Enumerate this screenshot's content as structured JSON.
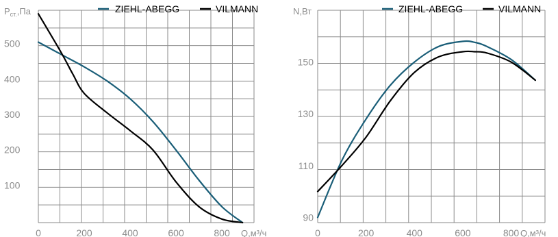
{
  "chart_data": [
    {
      "type": "line",
      "ylabel_main": "P",
      "ylabel_sub": "ст.",
      "ylabel_rest": ",Па",
      "xlabel": "Q,м³/ч",
      "xlim": [
        0,
        940
      ],
      "ylim": [
        0,
        600
      ],
      "x_ticks": [
        0,
        200,
        400,
        600,
        800
      ],
      "y_ticks": [
        100,
        200,
        300,
        400,
        500
      ],
      "grid": true,
      "legend_position": "top-right",
      "series": [
        {
          "name": "ZIEHL-ABEGG",
          "color": "#1a5e78",
          "x": [
            0,
            100,
            200,
            300,
            400,
            500,
            600,
            700,
            800,
            890
          ],
          "y": [
            510,
            475,
            440,
            400,
            350,
            285,
            205,
            120,
            45,
            0
          ]
        },
        {
          "name": "VILMANN",
          "color": "#000000",
          "x": [
            0,
            100,
            150,
            200,
            300,
            400,
            500,
            600,
            700,
            800,
            890
          ],
          "y": [
            590,
            480,
            420,
            365,
            310,
            260,
            205,
            115,
            45,
            10,
            0
          ]
        }
      ]
    },
    {
      "type": "line",
      "ylabel_main": "N,Вт",
      "xlabel": "Q,м³/ч",
      "xlim": [
        0,
        940
      ],
      "ylim": [
        88,
        170
      ],
      "x_ticks": [
        0,
        200,
        400,
        600,
        800
      ],
      "y_ticks": [
        90,
        110,
        130,
        150
      ],
      "grid": true,
      "legend_position": "top-right",
      "series": [
        {
          "name": "ZIEHL-ABEGG",
          "color": "#1a5e78",
          "x": [
            0,
            100,
            200,
            300,
            400,
            500,
            600,
            650,
            700,
            800,
            900
          ],
          "y": [
            90,
            112,
            128,
            141,
            150,
            156,
            158,
            157.6,
            156,
            151,
            143
          ]
        },
        {
          "name": "VILMANN",
          "color": "#000000",
          "x": [
            0,
            100,
            200,
            300,
            400,
            500,
            600,
            650,
            700,
            800,
            900
          ],
          "y": [
            100,
            110,
            121,
            135,
            146,
            152,
            154,
            154,
            153.5,
            150,
            143
          ]
        }
      ]
    }
  ]
}
